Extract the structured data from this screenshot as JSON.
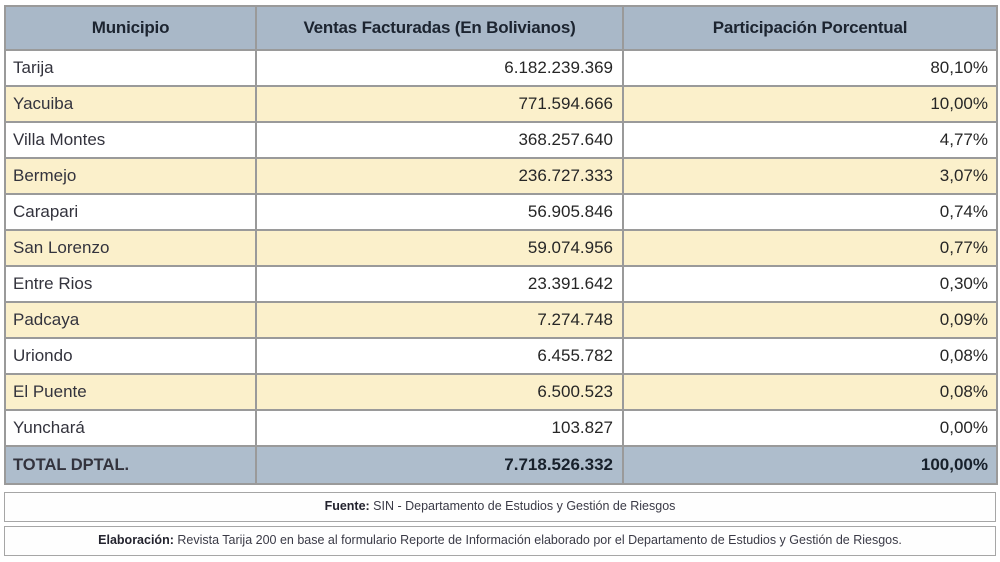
{
  "table": {
    "columns": [
      "Municipio",
      "Ventas Facturadas (En Bolivianos)",
      "Participación Porcentual"
    ],
    "rows": [
      {
        "municipio": "Tarija",
        "ventas": "6.182.239.369",
        "participacion": "80,10%"
      },
      {
        "municipio": "Yacuiba",
        "ventas": "771.594.666",
        "participacion": "10,00%"
      },
      {
        "municipio": "Villa Montes",
        "ventas": "368.257.640",
        "participacion": "4,77%"
      },
      {
        "municipio": "Bermejo",
        "ventas": "236.727.333",
        "participacion": "3,07%"
      },
      {
        "municipio": "Carapari",
        "ventas": "56.905.846",
        "participacion": "0,74%"
      },
      {
        "municipio": "San Lorenzo",
        "ventas": "59.074.956",
        "participacion": "0,77%"
      },
      {
        "municipio": "Entre Rios",
        "ventas": "23.391.642",
        "participacion": "0,30%"
      },
      {
        "municipio": "Padcaya",
        "ventas": "7.274.748",
        "participacion": "0,09%"
      },
      {
        "municipio": "Uriondo",
        "ventas": "6.455.782",
        "participacion": "0,08%"
      },
      {
        "municipio": "El Puente",
        "ventas": "6.500.523",
        "participacion": "0,08%"
      },
      {
        "municipio": "Yunchará",
        "ventas": "103.827",
        "participacion": "0,00%"
      }
    ],
    "total": {
      "label": "TOTAL DPTAL.",
      "ventas": "7.718.526.332",
      "participacion": "100,00%"
    }
  },
  "footer": {
    "fuente_label": "Fuente:",
    "fuente_text": " SIN - Departamento de Estudios y Gestión de Riesgos",
    "elaboracion_label": "Elaboración:",
    "elaboracion_text": " Revista Tarija 200 en base al formulario Reporte de Información elaborado por el Departamento de Estudios y Gestión de Riesgos."
  },
  "colors": {
    "header_bg": "#a9b8c8",
    "total_bg": "#aebdcc",
    "row_even_bg": "#fbf0cb",
    "row_odd_bg": "#ffffff",
    "border": "#9a9a9a"
  }
}
